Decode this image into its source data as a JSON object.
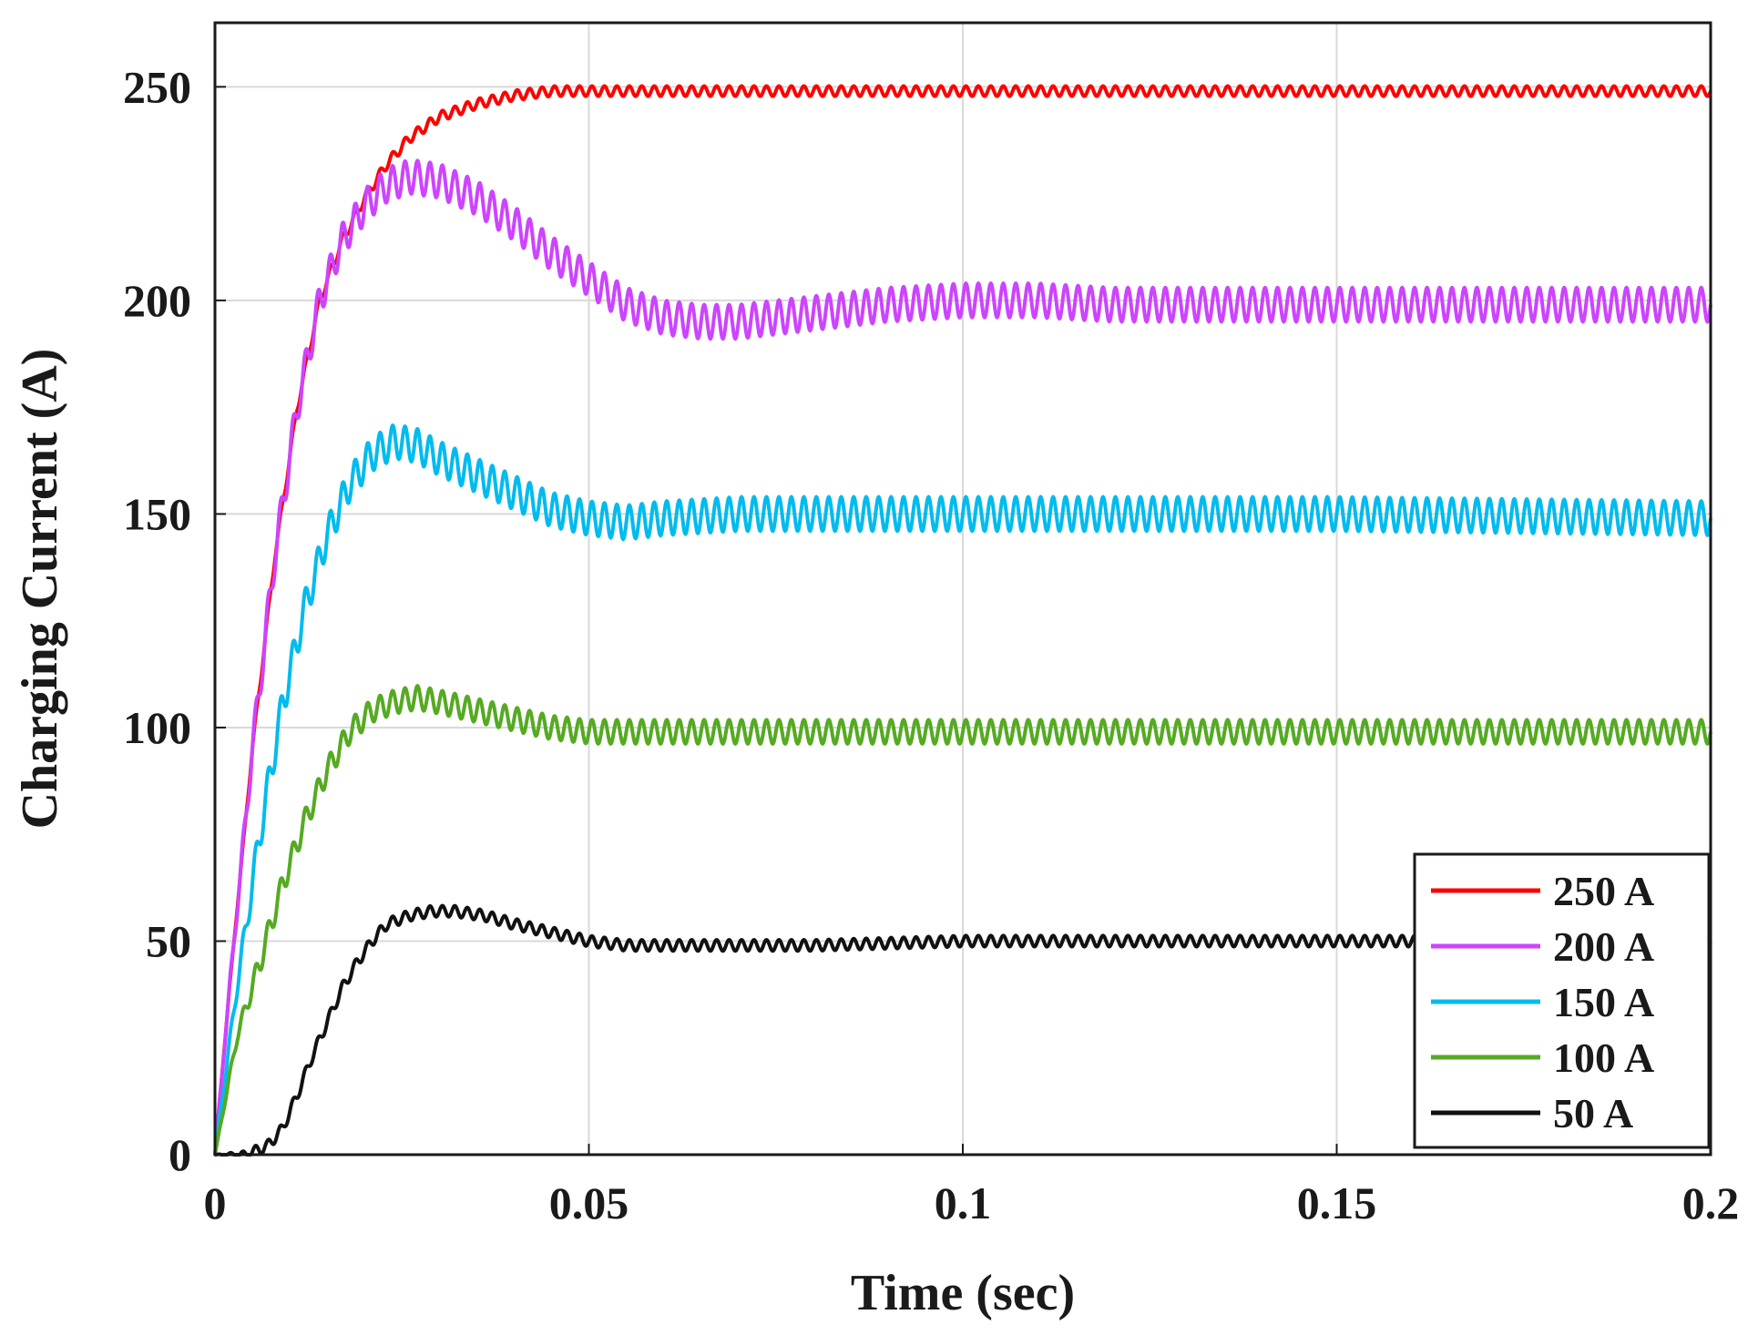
{
  "chart_data": {
    "type": "line",
    "title": "",
    "xlabel": "Time (sec)",
    "ylabel": "Charging Current (A)",
    "xlim": [
      0,
      0.2
    ],
    "ylim": [
      0,
      265
    ],
    "grid": true,
    "legend_position": "bottom-right",
    "x_ticks": [
      {
        "value": 0,
        "label": "0"
      },
      {
        "value": 0.05,
        "label": "0.05"
      },
      {
        "value": 0.1,
        "label": "0.1"
      },
      {
        "value": 0.15,
        "label": "0.15"
      },
      {
        "value": 0.2,
        "label": "0.2"
      }
    ],
    "y_ticks": [
      {
        "value": 0,
        "label": "0"
      },
      {
        "value": 50,
        "label": "50"
      },
      {
        "value": 100,
        "label": "100"
      },
      {
        "value": 150,
        "label": "150"
      },
      {
        "value": 200,
        "label": "200"
      },
      {
        "value": 250,
        "label": "250"
      }
    ],
    "series": [
      {
        "name": "250 A",
        "color": "#ff0000",
        "ripple": 1.2,
        "x": [
          0,
          0.002,
          0.005,
          0.008,
          0.011,
          0.014,
          0.017,
          0.02,
          0.023,
          0.026,
          0.03,
          0.035,
          0.04,
          0.045,
          0.05,
          0.06,
          0.08,
          0.1,
          0.15,
          0.2
        ],
        "y": [
          0,
          40,
          95,
          140,
          175,
          200,
          214,
          224,
          232,
          238,
          243,
          246,
          248,
          249,
          249,
          249,
          249,
          249,
          249,
          249
        ]
      },
      {
        "name": "200 A",
        "color": "#cc44ff",
        "ripple": 4,
        "x": [
          0,
          0.002,
          0.005,
          0.008,
          0.011,
          0.014,
          0.017,
          0.02,
          0.023,
          0.026,
          0.03,
          0.035,
          0.04,
          0.045,
          0.05,
          0.055,
          0.06,
          0.065,
          0.07,
          0.075,
          0.08,
          0.09,
          0.1,
          0.11,
          0.12,
          0.15,
          0.2
        ],
        "y": [
          0,
          40,
          95,
          140,
          175,
          200,
          214,
          222,
          227,
          229,
          228,
          224,
          218,
          211,
          205,
          199,
          196,
          195,
          195,
          196,
          197,
          199,
          200,
          200,
          199,
          199,
          199
        ]
      },
      {
        "name": "150 A",
        "color": "#00bbee",
        "ripple": 4,
        "x": [
          0,
          0.003,
          0.006,
          0.009,
          0.012,
          0.015,
          0.018,
          0.021,
          0.024,
          0.027,
          0.03,
          0.035,
          0.04,
          0.045,
          0.05,
          0.055,
          0.06,
          0.07,
          0.08,
          0.1,
          0.15,
          0.2
        ],
        "y": [
          0,
          40,
          75,
          105,
          128,
          145,
          157,
          164,
          167,
          166,
          163,
          159,
          155,
          151,
          149,
          148,
          149,
          150,
          150,
          150,
          150,
          149
        ]
      },
      {
        "name": "100 A",
        "color": "#55aa22",
        "ripple": 2.8,
        "x": [
          0,
          0.003,
          0.006,
          0.009,
          0.012,
          0.015,
          0.018,
          0.021,
          0.024,
          0.027,
          0.03,
          0.035,
          0.04,
          0.045,
          0.05,
          0.055,
          0.06,
          0.07,
          0.1,
          0.15,
          0.2
        ],
        "y": [
          0,
          28,
          45,
          63,
          78,
          90,
          99,
          104,
          106,
          107,
          106,
          104,
          102,
          100,
          99,
          99,
          99,
          99,
          99,
          99,
          99
        ]
      },
      {
        "name": "50 A",
        "color": "#111111",
        "ripple": 1.3,
        "x": [
          0,
          0.004,
          0.007,
          0.009,
          0.011,
          0.013,
          0.015,
          0.017,
          0.019,
          0.021,
          0.023,
          0.026,
          0.029,
          0.032,
          0.036,
          0.04,
          0.045,
          0.05,
          0.055,
          0.06,
          0.07,
          0.08,
          0.1,
          0.15,
          0.2
        ],
        "y": [
          0,
          0,
          2,
          6,
          14,
          23,
          31,
          39,
          45,
          50,
          54,
          56,
          57,
          57,
          56,
          54,
          52,
          50,
          49,
          49,
          49,
          49,
          50,
          50,
          50
        ]
      }
    ]
  }
}
